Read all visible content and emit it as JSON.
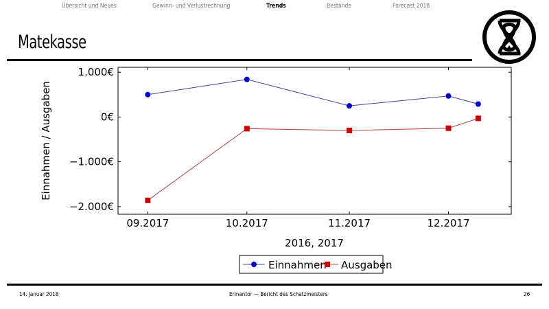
{
  "nav": {
    "items": [
      {
        "label": "Übersicht und Neues",
        "active": false
      },
      {
        "label": "Gewinn- und Verlustrechnung",
        "active": false
      },
      {
        "label": "Trends",
        "active": true
      },
      {
        "label": "Bestände",
        "active": false
      },
      {
        "label": "Forecast 2018",
        "active": false
      }
    ]
  },
  "slide": {
    "title": "Matekasse",
    "logo": "hourglass-circle-logo"
  },
  "footer": {
    "date": "14. Januar 2018",
    "center": "Ermantor — Bericht des Schatzmeisters",
    "page": "26"
  },
  "chart_data": {
    "type": "line",
    "xlabel": "2016, 2017",
    "ylabel": "Einnahmen / Ausgaben",
    "xticks": [
      {
        "date": "2017-09-01",
        "label": "09.2017"
      },
      {
        "date": "2017-10-01",
        "label": "10.2017"
      },
      {
        "date": "2017-11-01",
        "label": "11.2017"
      },
      {
        "date": "2017-12-01",
        "label": "12.2017"
      }
    ],
    "yticks": [
      {
        "value": 1000,
        "label": "1.000€"
      },
      {
        "value": 0,
        "label": "0€"
      },
      {
        "value": -1000,
        "label": "−1.000€"
      },
      {
        "value": -2000,
        "label": "−2.000€"
      }
    ],
    "xlim": [
      "2017-08-23",
      "2017-12-20"
    ],
    "ylim": [
      -2170,
      1110
    ],
    "grid": false,
    "legend_position": "bottom",
    "series": [
      {
        "name": "Einnahmen",
        "color": "#0000cc",
        "line_color": "#4040a0",
        "marker": "circle",
        "x": [
          "2017-09-01",
          "2017-10-01",
          "2017-11-01",
          "2017-12-01",
          "2017-12-10"
        ],
        "values": [
          500,
          840,
          250,
          470,
          290
        ]
      },
      {
        "name": "Ausgaben",
        "color": "#cc0000",
        "line_color": "#b04040",
        "marker": "square",
        "x": [
          "2017-09-01",
          "2017-10-01",
          "2017-11-01",
          "2017-12-01",
          "2017-12-10"
        ],
        "values": [
          -1860,
          -260,
          -300,
          -250,
          -30
        ]
      }
    ]
  }
}
